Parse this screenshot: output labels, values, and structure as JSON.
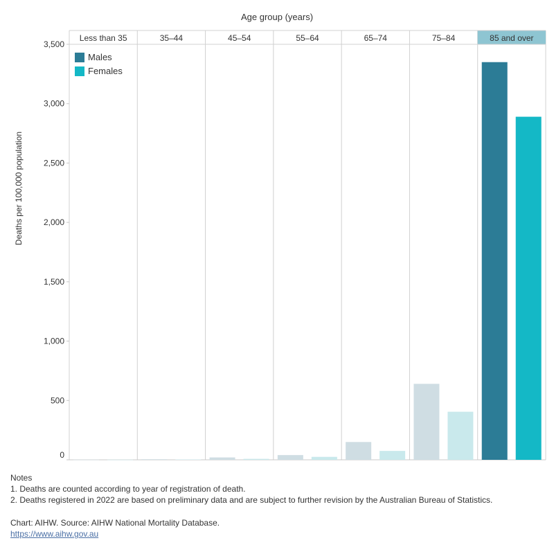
{
  "chart_data": {
    "type": "bar",
    "top_axis_title": "Age group (years)",
    "ylabel": "Deaths per 100,000 population",
    "xlabel": "",
    "categories": [
      "Less than 35",
      "35–44",
      "45–54",
      "55–64",
      "65–74",
      "75–84",
      "85 and over"
    ],
    "highlighted_category": "85 and over",
    "ylim": [
      0,
      3500
    ],
    "yticks": [
      0,
      500,
      1000,
      1500,
      2000,
      2500,
      3000,
      3500
    ],
    "ytick_labels": [
      "0",
      "500",
      "1,000",
      "1,500",
      "2,000",
      "2,500",
      "3,000",
      "3,500"
    ],
    "legend_position": "top-left",
    "series": [
      {
        "name": "Males",
        "values": [
          1,
          5,
          20,
          40,
          150,
          640,
          3350
        ]
      },
      {
        "name": "Females",
        "values": [
          1,
          3,
          8,
          25,
          75,
          405,
          2890
        ]
      }
    ],
    "colors": {
      "males": "#2c7c96",
      "females": "#14b8c6",
      "males_faded": "#cfdde3",
      "females_faded": "#c9e9ec",
      "highlight_header": "#8ec5d2"
    }
  },
  "notes": {
    "heading": "Notes",
    "items": [
      "1. Deaths are counted according to year of registration of death.",
      "2. Deaths registered in 2022 are based on preliminary data and are subject to further revision by the Australian Bureau of Statistics."
    ]
  },
  "source": {
    "text": "Chart: AIHW. Source: AIHW National Mortality Database.",
    "link": "https://www.aihw.gov.au"
  }
}
